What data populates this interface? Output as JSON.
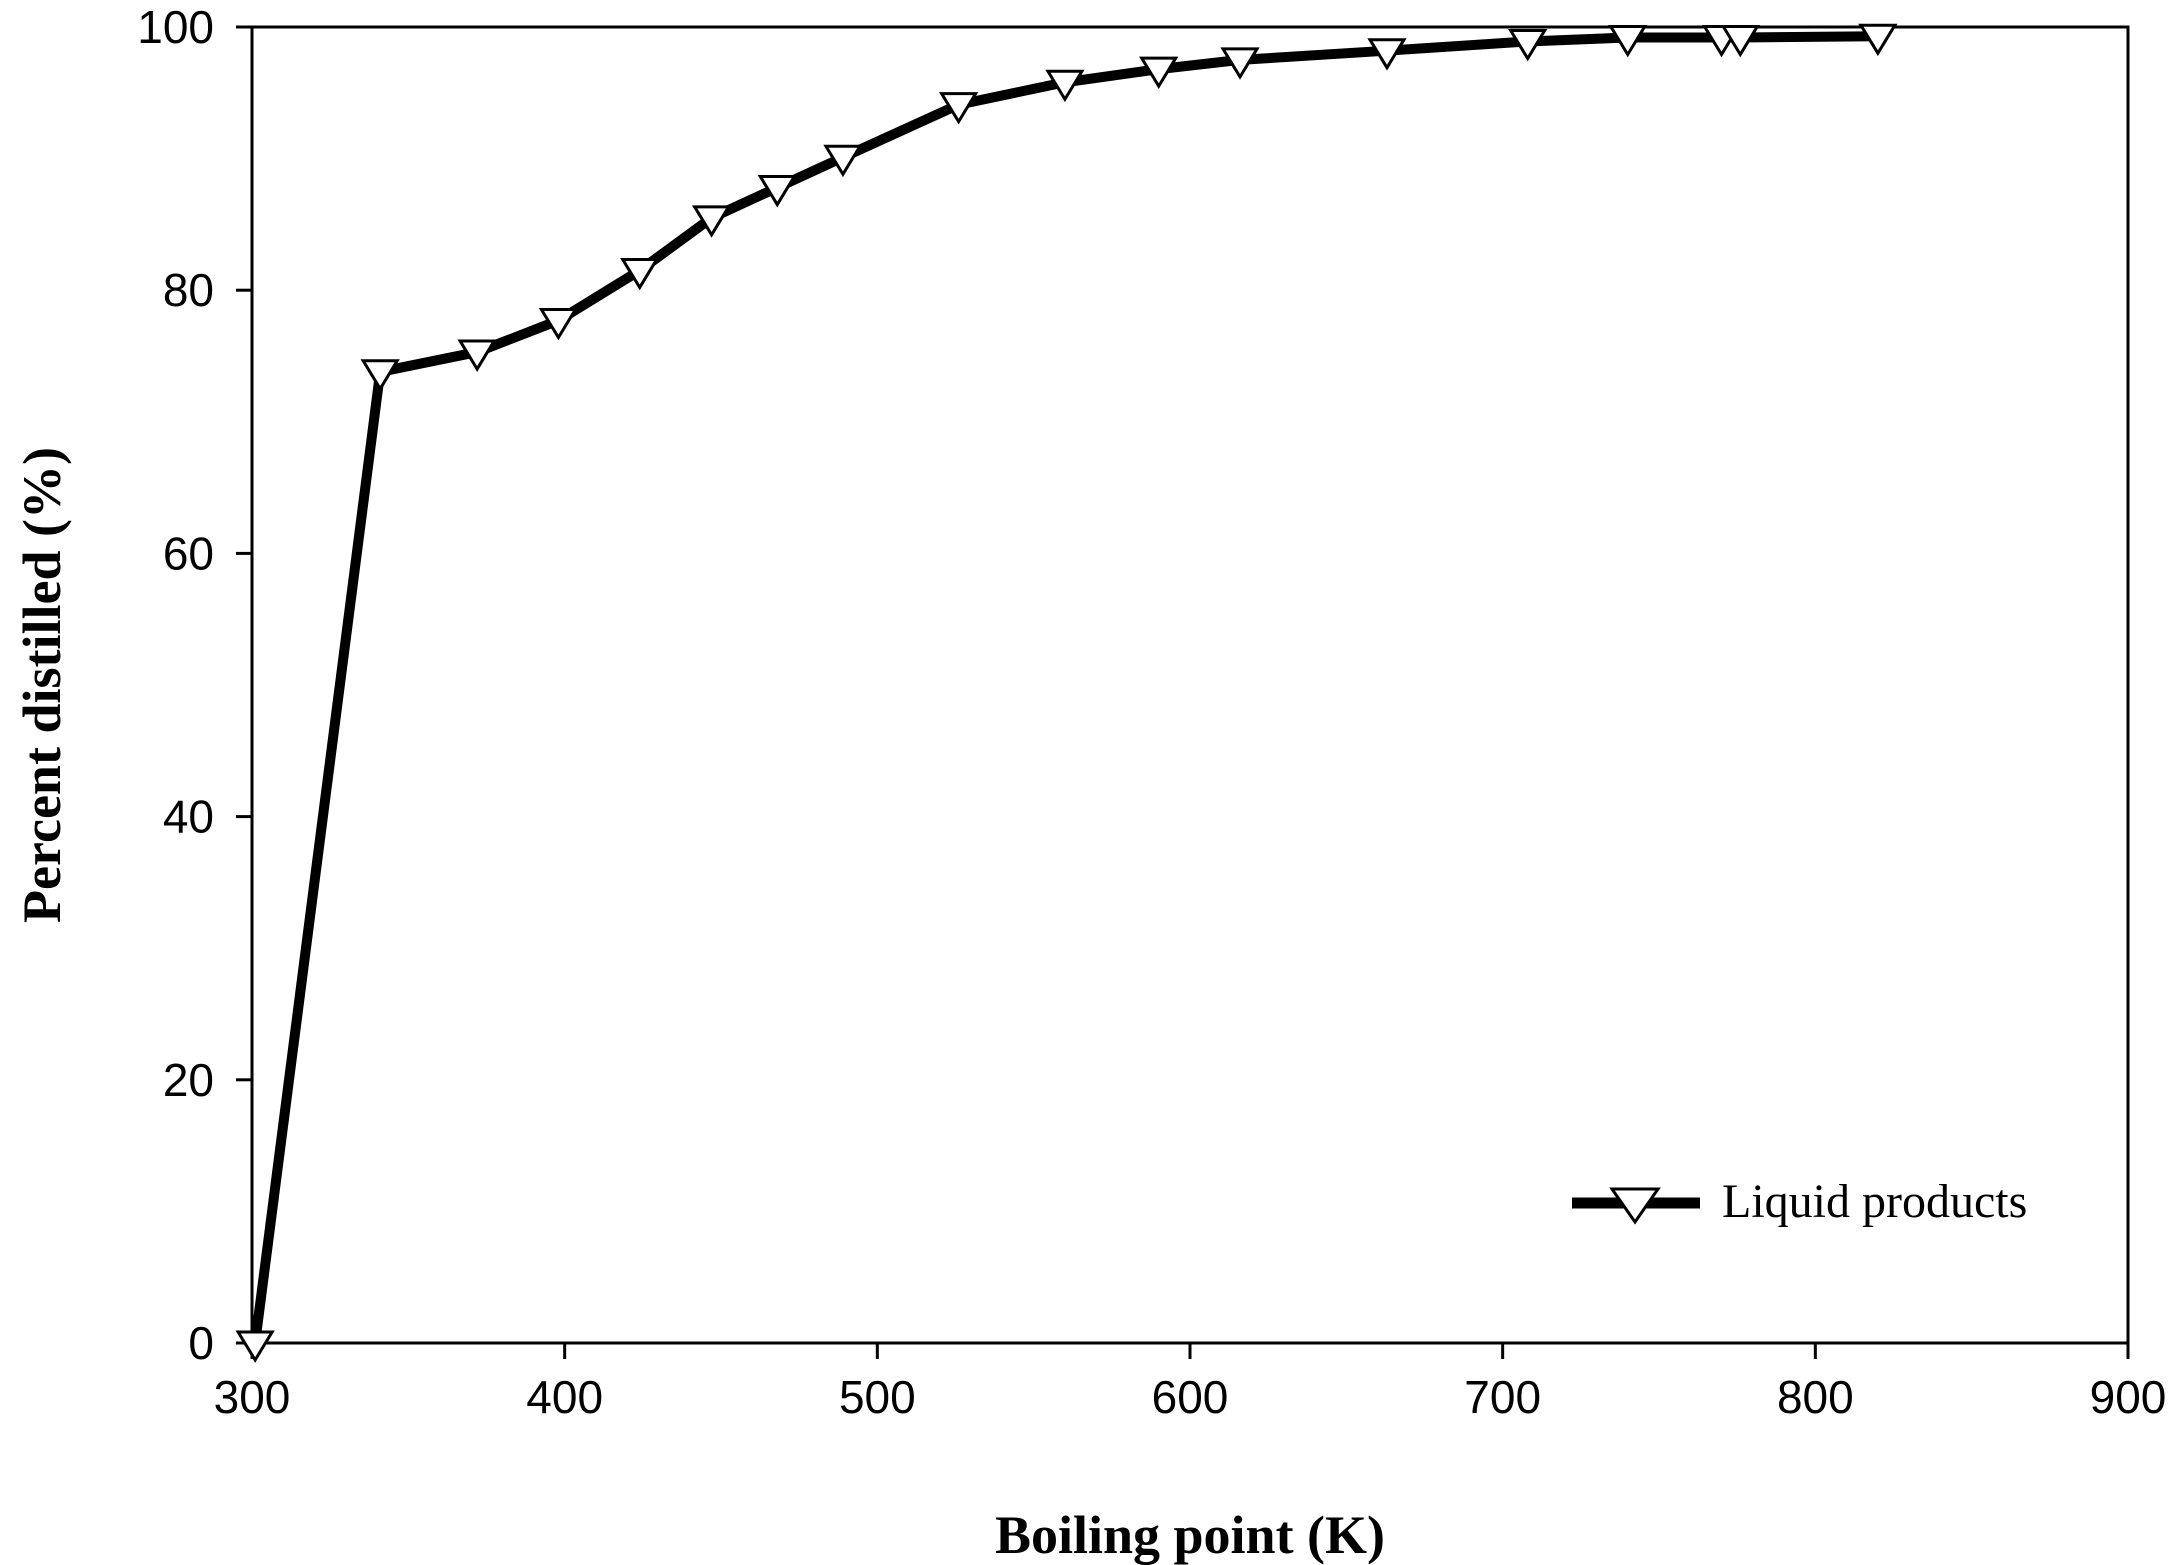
{
  "chart_data": {
    "type": "line",
    "title": "",
    "xlabel": "Boiling point (K)",
    "ylabel": "Percent distilled (%)",
    "xlim": [
      300,
      900
    ],
    "ylim": [
      0,
      100
    ],
    "xticks": [
      300,
      400,
      500,
      600,
      700,
      800,
      900
    ],
    "yticks": [
      0,
      20,
      40,
      60,
      80,
      100
    ],
    "grid": false,
    "legend_position": "bottom-right",
    "series": [
      {
        "name": "Liquid products",
        "color": "#000000",
        "marker": "triangle-down",
        "x": [
          301,
          341,
          372,
          398,
          424,
          447,
          468,
          489,
          526,
          560,
          590,
          616,
          663,
          708,
          740,
          770,
          776,
          820
        ],
        "y": [
          0,
          73.8,
          75.3,
          77.7,
          81.5,
          85.5,
          87.8,
          90.1,
          94.1,
          95.8,
          96.8,
          97.5,
          98.2,
          98.9,
          99.2,
          99.2,
          99.2,
          99.3
        ]
      }
    ]
  }
}
